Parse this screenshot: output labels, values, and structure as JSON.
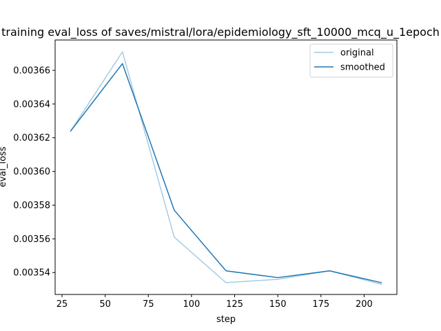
{
  "chart_data": {
    "type": "line",
    "title": "training eval_loss of saves/mistral/lora/epidemiology_sft_10000_mcq_u_1epoch",
    "xlabel": "step",
    "ylabel": "eval_loss",
    "xlim": [
      21,
      219
    ],
    "ylim": [
      0.003527,
      0.003678
    ],
    "xticks": [
      25,
      50,
      75,
      100,
      125,
      150,
      175,
      200
    ],
    "xtick_labels": [
      "25",
      "50",
      "75",
      "100",
      "125",
      "150",
      "175",
      "200"
    ],
    "yticks": [
      0.00354,
      0.00356,
      0.00358,
      0.0036,
      0.00362,
      0.00364,
      0.00366
    ],
    "ytick_labels": [
      "0.00354",
      "0.00356",
      "0.00358",
      "0.00360",
      "0.00362",
      "0.00364",
      "0.00366"
    ],
    "grid": false,
    "legend": "top-right",
    "x": [
      30,
      60,
      90,
      120,
      150,
      180,
      210
    ],
    "series": [
      {
        "name": "original",
        "color": "#a6cbe3",
        "values": [
          0.003624,
          0.003671,
          0.003561,
          0.003534,
          0.003536,
          0.003541,
          0.003533
        ]
      },
      {
        "name": "smoothed",
        "color": "#1f77b4",
        "values": [
          0.003624,
          0.003664,
          0.003577,
          0.003541,
          0.003537,
          0.003541,
          0.003534
        ]
      }
    ]
  }
}
